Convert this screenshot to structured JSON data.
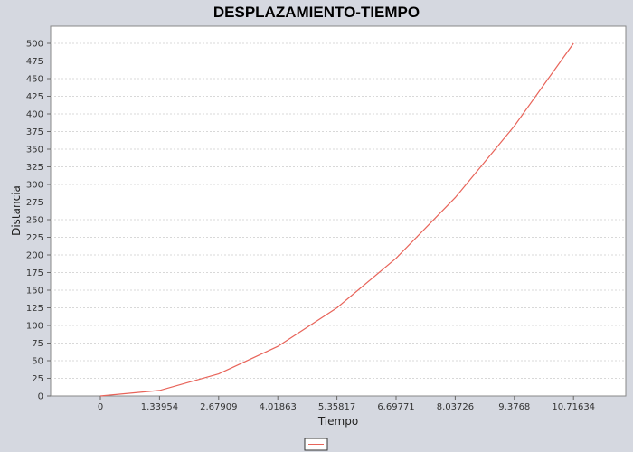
{
  "chart_data": {
    "type": "line",
    "title": "DESPLAZAMIENTO-TIEMPO",
    "xlabel": "Tiempo",
    "ylabel": "Distancia",
    "x_tick_labels": [
      "0",
      "1.33954",
      "2.67909",
      "4.01863",
      "5.35817",
      "6.69771",
      "8.03726",
      "9.3768",
      "10.71634"
    ],
    "y_tick_labels": [
      "0",
      "25",
      "50",
      "75",
      "100",
      "125",
      "150",
      "175",
      "200",
      "225",
      "250",
      "275",
      "300",
      "325",
      "350",
      "375",
      "400",
      "425",
      "450",
      "475",
      "500"
    ],
    "ylim": [
      0,
      500
    ],
    "grid": true,
    "legend": "bottom",
    "series": [
      {
        "name": "",
        "color": "#e8645a",
        "x": [
          0,
          1.33954,
          2.67909,
          4.01863,
          5.35817,
          6.69771,
          8.03726,
          9.3768,
          10.71634
        ],
        "y": [
          0,
          7.8,
          31.3,
          70.3,
          125,
          195.3,
          281.3,
          382.8,
          500
        ]
      }
    ]
  }
}
